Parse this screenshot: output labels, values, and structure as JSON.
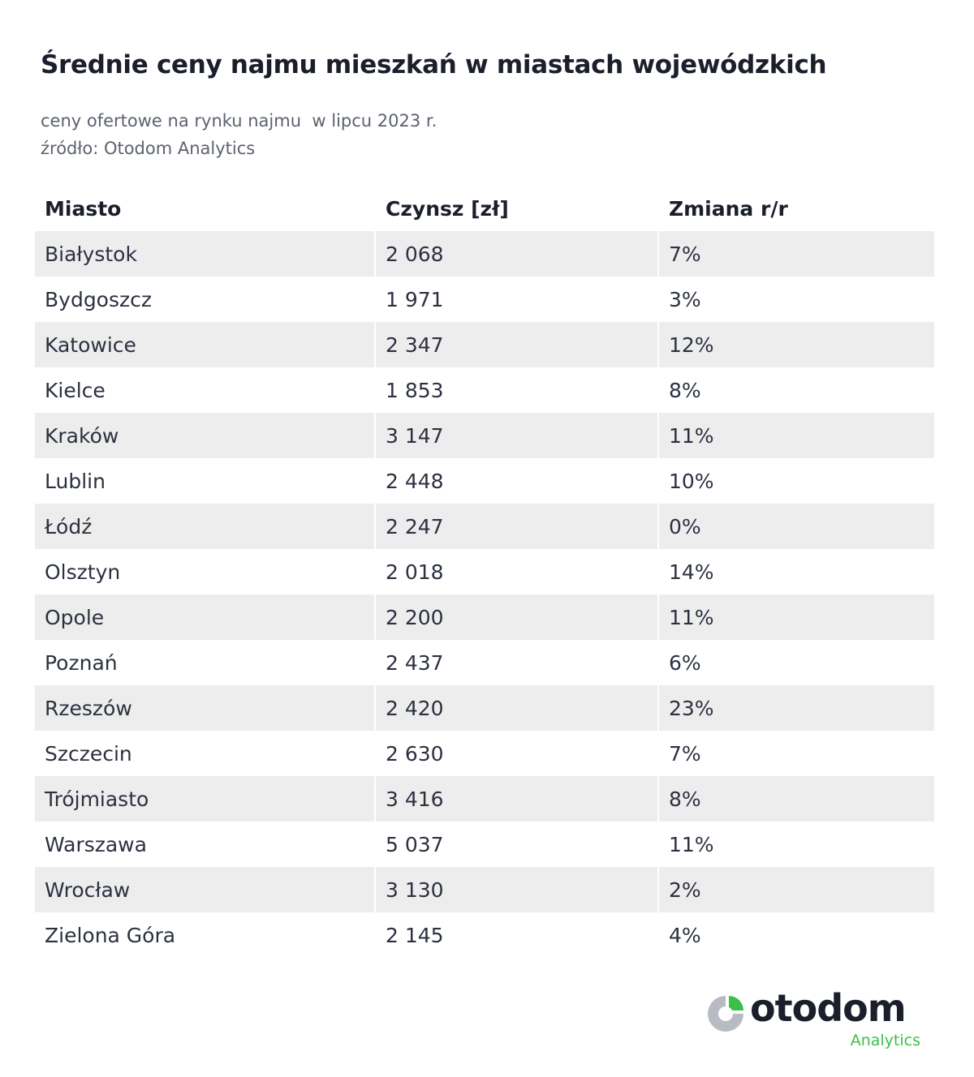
{
  "title": "Średnie ceny najmu mieszkań w miastach wojewódzkich",
  "subtitle_line1": "ceny ofertowe na rynku najmu  w lipcu 2023 r.",
  "subtitle_line2": "źródło: Otodom Analytics",
  "logo": {
    "word": "otodom",
    "sub": "Analytics",
    "icon": "otodom-logo-icon",
    "green": "#3cbf48",
    "gray": "#b8bcc2"
  },
  "colors": {
    "row_shade": "#ededed",
    "text": "#1b1f2b"
  },
  "chart_data": {
    "type": "table",
    "columns": [
      "Miasto",
      "Czynsz [zł]",
      "Zmiana r/r"
    ],
    "rows": [
      [
        "Białystok",
        "2 068",
        "7%"
      ],
      [
        "Bydgoszcz",
        "1 971",
        "3%"
      ],
      [
        "Katowice",
        "2 347",
        "12%"
      ],
      [
        "Kielce",
        "1 853",
        "8%"
      ],
      [
        "Kraków",
        "3 147",
        "11%"
      ],
      [
        "Lublin",
        "2 448",
        "10%"
      ],
      [
        "Łódź",
        "2 247",
        "0%"
      ],
      [
        "Olsztyn",
        "2 018",
        "14%"
      ],
      [
        "Opole",
        "2 200",
        "11%"
      ],
      [
        "Poznań",
        "2 437",
        "6%"
      ],
      [
        "Rzeszów",
        "2 420",
        "23%"
      ],
      [
        "Szczecin",
        "2 630",
        "7%"
      ],
      [
        "Trójmiasto",
        "3 416",
        "8%"
      ],
      [
        "Warszawa",
        "5 037",
        "11%"
      ],
      [
        "Wrocław",
        "3 130",
        "2%"
      ],
      [
        "Zielona Góra",
        "2 145",
        "4%"
      ]
    ]
  }
}
